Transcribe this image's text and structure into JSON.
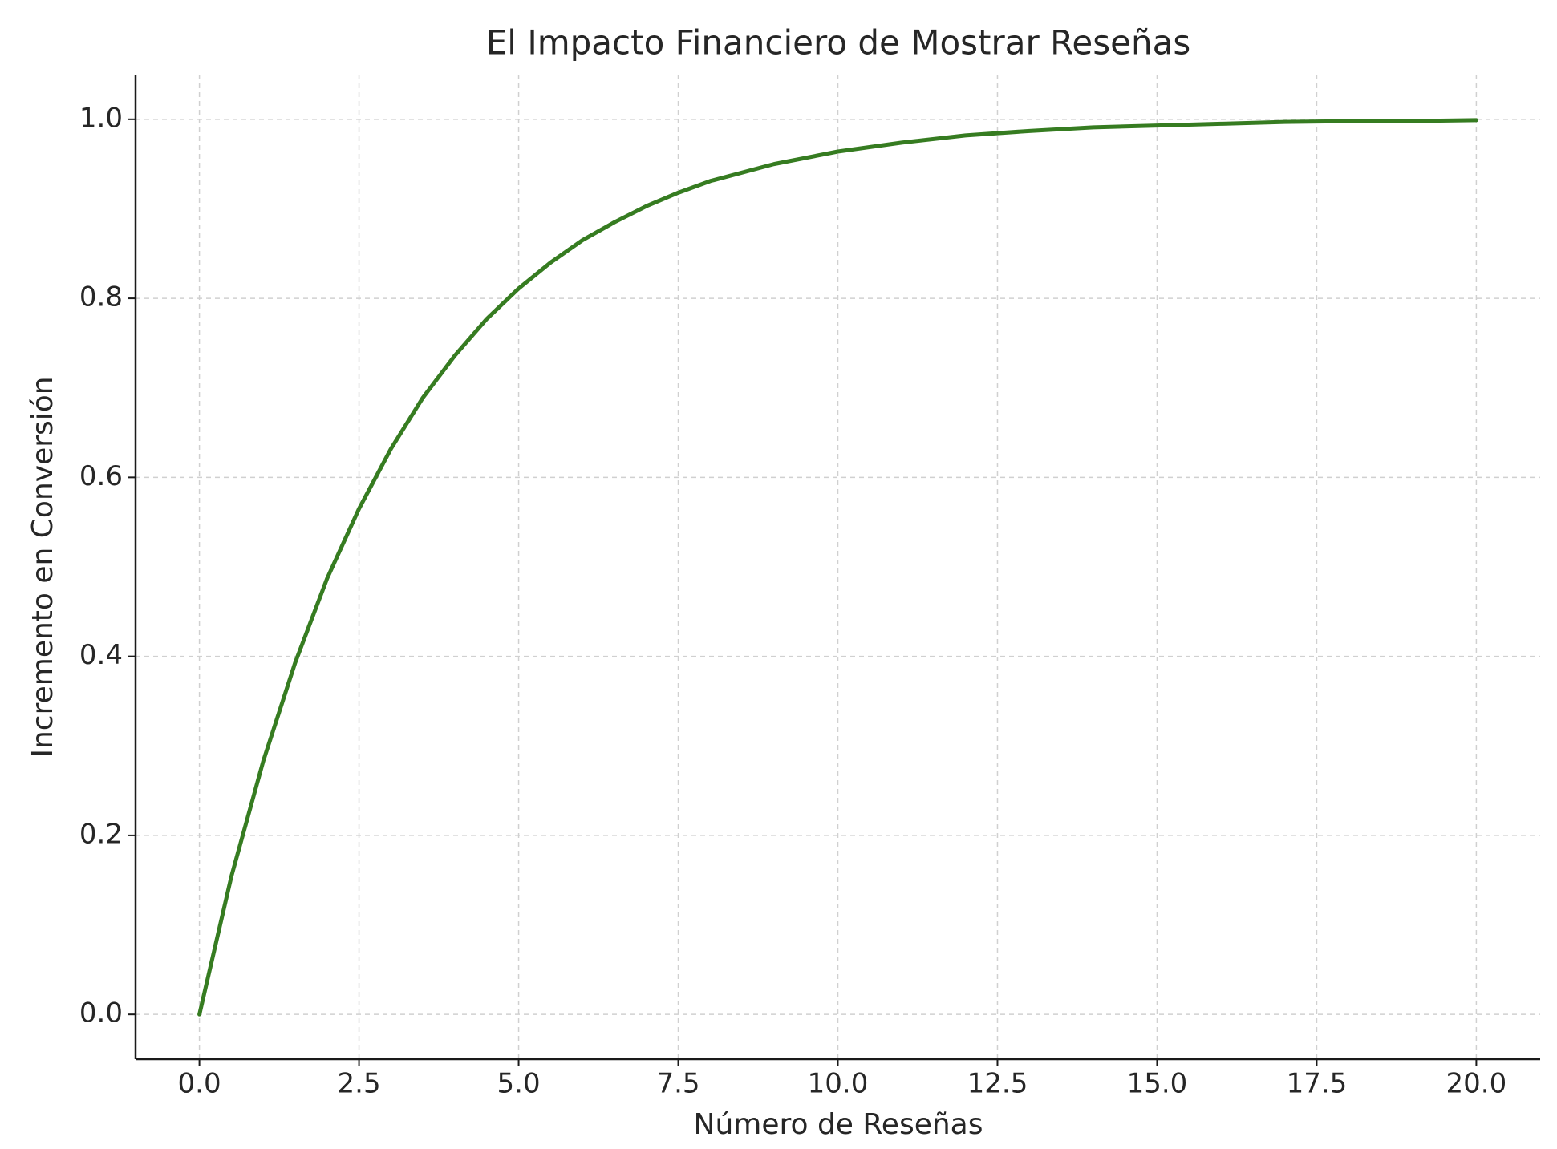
{
  "chart_data": {
    "type": "line",
    "title": "El Impacto Financiero de Mostrar Reseñas",
    "xlabel": "Número de Reseñas",
    "ylabel": "Incremento en Conversión",
    "x": [
      0,
      0.5,
      1,
      1.5,
      2,
      2.5,
      3,
      3.5,
      4,
      4.5,
      5,
      5.5,
      6,
      6.5,
      7,
      7.5,
      8,
      9,
      10,
      11,
      12,
      13,
      14,
      15,
      16,
      17,
      18,
      19,
      20
    ],
    "series": [
      {
        "color": "#367c21",
        "values": [
          0,
          0.154,
          0.283,
          0.393,
          0.487,
          0.565,
          0.632,
          0.689,
          0.736,
          0.777,
          0.811,
          0.84,
          0.865,
          0.885,
          0.903,
          0.918,
          0.931,
          0.95,
          0.964,
          0.974,
          0.982,
          0.987,
          0.991,
          0.993,
          0.995,
          0.997,
          0.998,
          0.998,
          0.999
        ]
      }
    ],
    "xlim": [
      -1,
      21
    ],
    "ylim": [
      -0.05,
      1.05
    ],
    "xticks": [
      {
        "value": 0,
        "label": "0.0"
      },
      2.5,
      {
        "value": 5,
        "label": "5.0"
      },
      7.5,
      {
        "value": 10,
        "label": "10.0"
      },
      12.5,
      {
        "value": 15,
        "label": "15.0"
      },
      17.5,
      {
        "value": 20,
        "label": "20.0"
      }
    ],
    "yticks": [
      {
        "value": 0,
        "label": "0.0"
      },
      0.2,
      0.4,
      0.6,
      0.8,
      {
        "value": 1,
        "label": "1.0"
      }
    ],
    "grid": true
  }
}
